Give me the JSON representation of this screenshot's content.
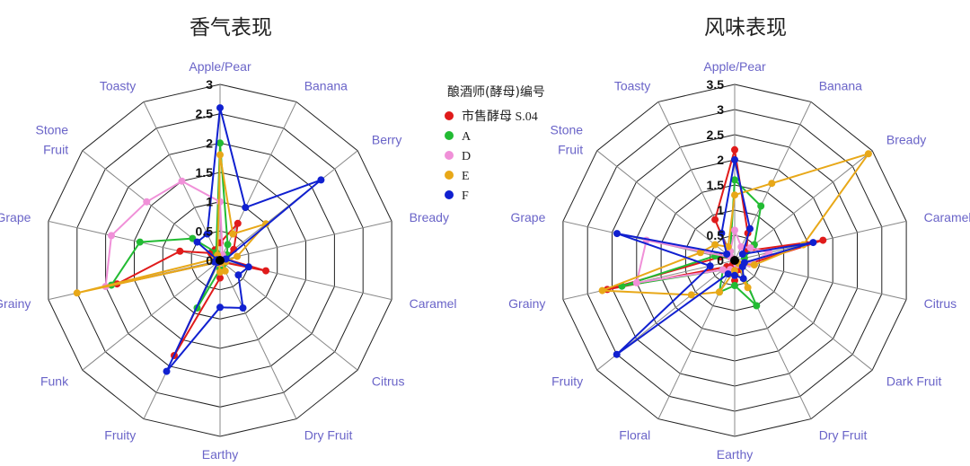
{
  "legend": {
    "title": "酿酒师(酵母)编号",
    "items": [
      {
        "label": "市售酵母 S.04",
        "color": "#e01b1b"
      },
      {
        "label": "A",
        "color": "#22bb33"
      },
      {
        "label": "D",
        "color": "#f090d8"
      },
      {
        "label": "E",
        "color": "#e8a818"
      },
      {
        "label": "F",
        "color": "#1020d0"
      }
    ]
  },
  "chart_data": [
    {
      "type": "radar",
      "title": "香气表现",
      "axes": [
        "Apple/Pear",
        "Banana",
        "Berry",
        "Bready",
        "Caramel",
        "Citrus",
        "Dry Fruit",
        "Earthy",
        "Fruity",
        "Funk",
        "Grainy",
        "Grape",
        "Stone Fruit",
        "Toasty"
      ],
      "rmax": 3,
      "ticks": [
        0,
        0.5,
        1,
        1.5,
        2,
        2.5,
        3
      ],
      "series": [
        {
          "name": "市售酵母 S.04",
          "color": "#e01b1b",
          "values": [
            0.3,
            0.7,
            0.3,
            0.1,
            0.8,
            0.05,
            0.05,
            0.3,
            1.8,
            0.05,
            1.8,
            0.7,
            0.2,
            0.2
          ]
        },
        {
          "name": "A",
          "color": "#22bb33",
          "values": [
            2.0,
            0.3,
            0.15,
            0.05,
            0.1,
            0.05,
            0.1,
            0.15,
            0.9,
            0.05,
            1.9,
            1.4,
            0.6,
            0.15
          ]
        },
        {
          "name": "D",
          "color": "#f090d8",
          "values": [
            1.0,
            0.1,
            0.05,
            0.05,
            0.05,
            0.05,
            0.05,
            0.05,
            0.05,
            0.05,
            2.0,
            1.9,
            1.6,
            1.5
          ]
        },
        {
          "name": "E",
          "color": "#e8a818",
          "values": [
            1.8,
            0.5,
            1.0,
            0.3,
            0.1,
            0.05,
            0.2,
            0.2,
            0.05,
            0.05,
            2.5,
            0.1,
            0.05,
            0.1
          ]
        },
        {
          "name": "F",
          "color": "#1020d0",
          "values": [
            2.6,
            1.0,
            2.2,
            0.1,
            0.5,
            0.4,
            0.9,
            0.8,
            2.1,
            0.05,
            0.1,
            0.05,
            0.5,
            0.5
          ]
        }
      ]
    },
    {
      "type": "radar",
      "title": "风味表现",
      "axes": [
        "Apple/Pear",
        "Banana",
        "Bready",
        "Caramel",
        "Citrus",
        "Dark Fruit",
        "Dry Fruit",
        "Earthy",
        "Floral",
        "Fruity",
        "Grainy",
        "Grape",
        "Stone Fruit",
        "Toasty"
      ],
      "rmax": 3.5,
      "ticks": [
        0,
        0.5,
        1,
        1.5,
        2,
        2.5,
        3,
        3.5
      ],
      "series": [
        {
          "name": "市售酵母 S.04",
          "color": "#e01b1b",
          "values": [
            2.2,
            0.6,
            0.3,
            1.8,
            0.3,
            0.1,
            0.2,
            0.4,
            0.1,
            0.2,
            2.6,
            0.3,
            0.1,
            0.9
          ]
        },
        {
          "name": "A",
          "color": "#22bb33",
          "values": [
            1.6,
            1.2,
            0.5,
            0.2,
            0.3,
            0.1,
            1.0,
            0.5,
            0.7,
            0.3,
            2.3,
            0.4,
            0.1,
            0.2
          ]
        },
        {
          "name": "D",
          "color": "#f090d8",
          "values": [
            0.6,
            0.3,
            0.4,
            0.7,
            0.3,
            0.1,
            0.1,
            0.3,
            0.2,
            0.3,
            2.0,
            1.8,
            0.1,
            0.2
          ]
        },
        {
          "name": "E",
          "color": "#e8a818",
          "values": [
            1.3,
            1.7,
            3.4,
            1.4,
            0.4,
            0.1,
            0.6,
            0.2,
            0.7,
            1.1,
            2.7,
            0.7,
            0.5,
            0.3
          ]
        },
        {
          "name": "F",
          "color": "#1020d0",
          "values": [
            2.0,
            0.7,
            0.2,
            1.6,
            0.2,
            0.2,
            0.4,
            0.3,
            0.3,
            3.0,
            0.5,
            2.4,
            0.2,
            0.6
          ]
        }
      ]
    }
  ]
}
